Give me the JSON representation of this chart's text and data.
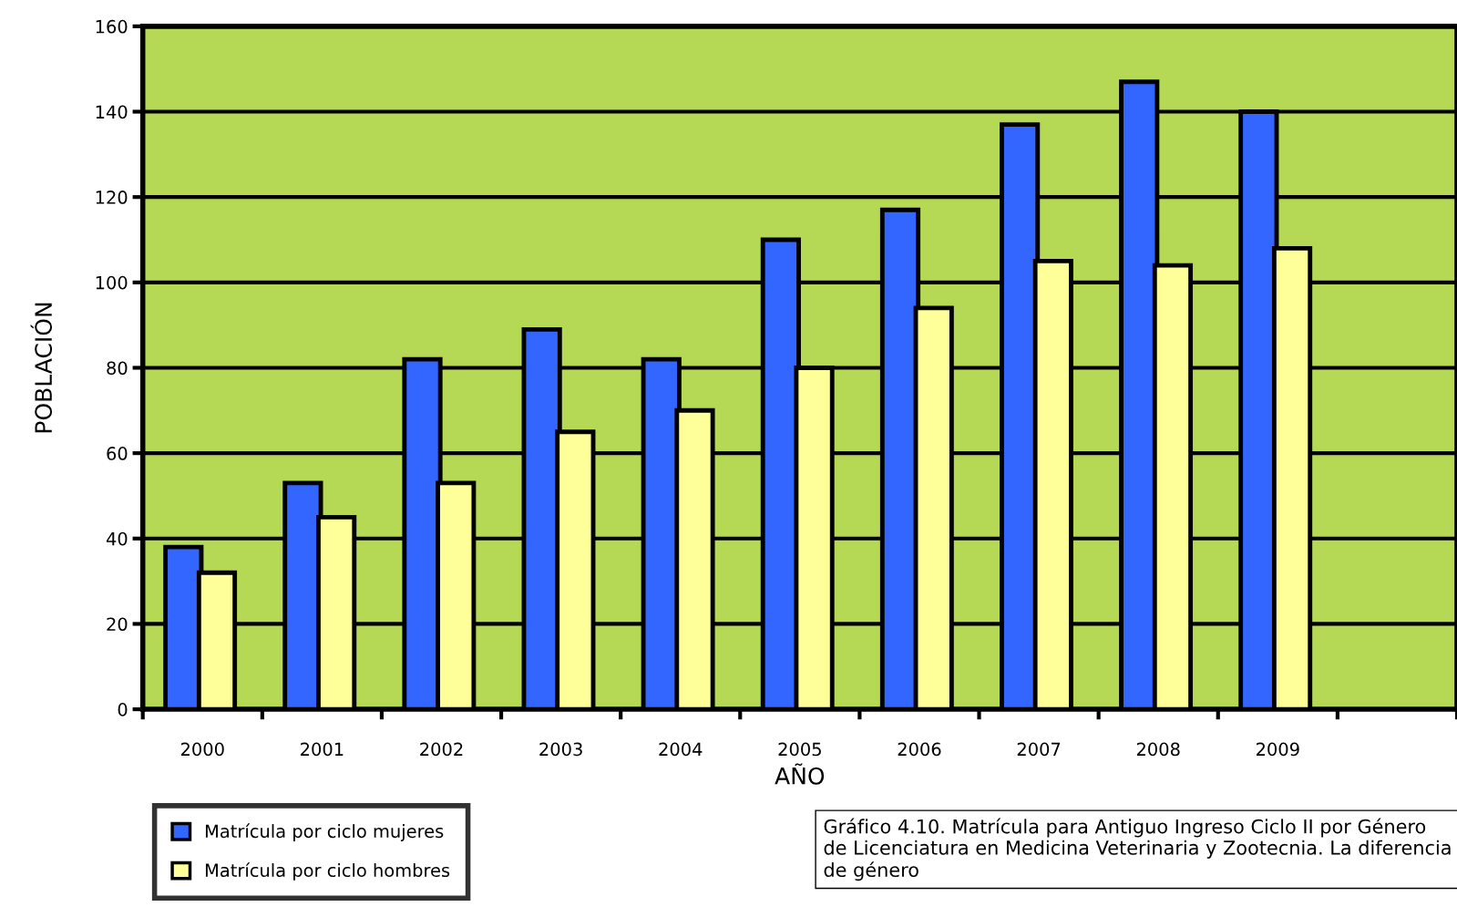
{
  "chart_data": {
    "type": "bar",
    "xlabel": "AÑO",
    "ylabel": "POBLACIÓN",
    "categories": [
      "2000",
      "2001",
      "2002",
      "2003",
      "2004",
      "2005",
      "2006",
      "2007",
      "2008",
      "2009",
      null
    ],
    "series": [
      {
        "name": "Matrícula por ciclo mujeres",
        "color": "#3366ff",
        "values": [
          38,
          53,
          82,
          89,
          82,
          110,
          117,
          137,
          147,
          140,
          null
        ]
      },
      {
        "name": "Matrícula por ciclo hombres",
        "color": "#ffff99",
        "values": [
          32,
          45,
          53,
          65,
          70,
          80,
          94,
          105,
          104,
          108,
          null
        ]
      }
    ],
    "ylim": [
      0,
      160
    ],
    "yticks": [
      0,
      20,
      40,
      60,
      80,
      100,
      120,
      140,
      160
    ],
    "grid": "y",
    "legend": "bottom left",
    "annotations": [
      "Gráfico 4.10. Matrícula para Antiguo Ingreso Ciclo II por Género de Licenciatura en Medicina Veterinaria y Zootecnia. La diferencia de género"
    ]
  }
}
